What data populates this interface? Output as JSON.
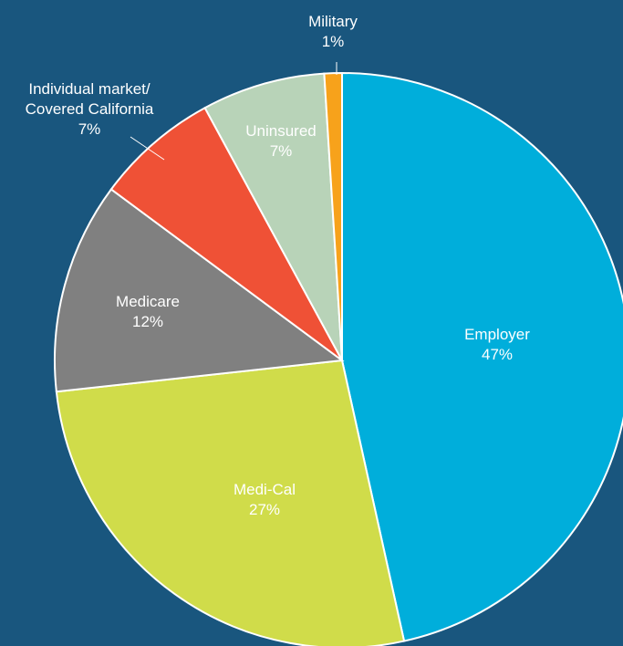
{
  "chart_data": {
    "type": "pie",
    "categories": [
      "Employer",
      "Medi-Cal",
      "Medicare",
      "Individual market/\nCovered California",
      "Uninsured",
      "Military"
    ],
    "values": [
      47,
      27,
      12,
      7,
      7,
      1
    ],
    "value_labels": [
      "47%",
      "27%",
      "12%",
      "7%",
      "7%",
      "1%"
    ],
    "colors": [
      "#00aedb",
      "#d0dc4a",
      "#808080",
      "#ef5136",
      "#b8d3b8",
      "#f7a21b"
    ]
  }
}
